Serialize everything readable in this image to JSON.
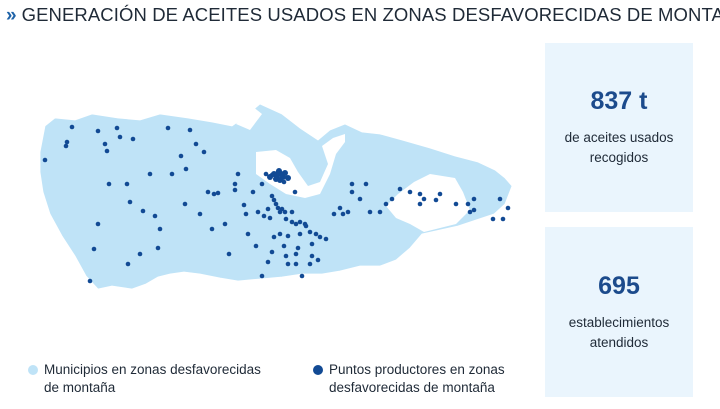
{
  "header": {
    "icon": "double-chevron-right-icon",
    "title": "GENERACIÓN DE ACEITES USADOS EN ZONAS DESFAVORECIDAS DE MONTAÑA"
  },
  "colors": {
    "region_fill": "#bfe3f7",
    "region_outline": "#ffffff",
    "point": "#124a94",
    "accent": "#1f63a8",
    "panel_bg": "#eaf5fd",
    "stat_value": "#1c4b8c"
  },
  "stats": [
    {
      "value": "837 t",
      "description": "de aceites usados recogidos"
    },
    {
      "value": "695",
      "description": "establecimientos atendidos"
    }
  ],
  "legend": [
    {
      "label": "Municipios en zonas desfavorecidas de montaña",
      "color": "#bfe3f7"
    },
    {
      "label": "Puntos productores en zonas desfavorecidas de montaña",
      "color": "#124a94"
    }
  ]
}
